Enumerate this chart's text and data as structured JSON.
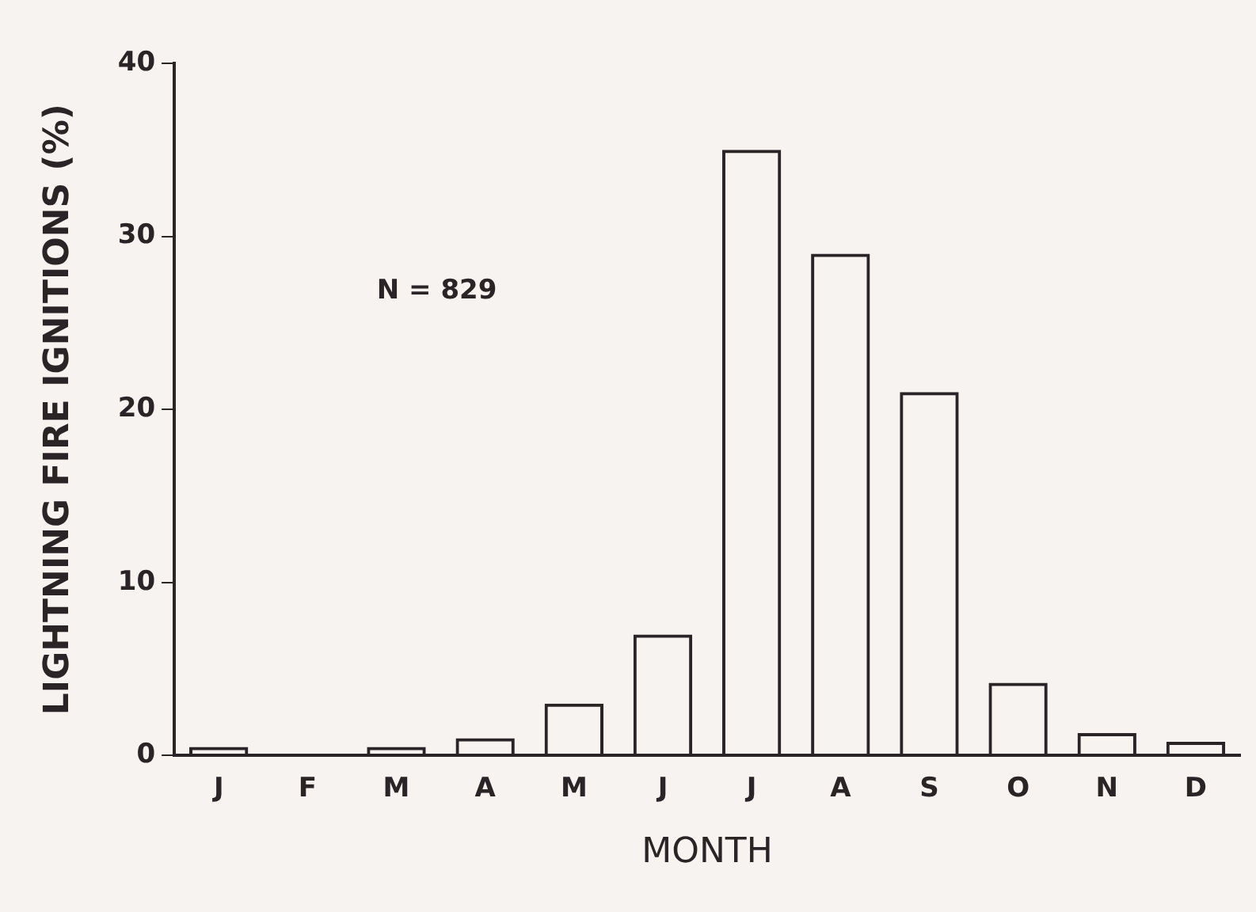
{
  "chart_data": {
    "type": "bar",
    "xlabel": "MONTH",
    "ylabel": "LIGHTNING FIRE IGNITIONS (%)",
    "categories": [
      "J",
      "F",
      "M",
      "A",
      "M",
      "J",
      "J",
      "A",
      "S",
      "O",
      "N",
      "D"
    ],
    "values": [
      0.5,
      0,
      0.5,
      1,
      3,
      7,
      35,
      29,
      21,
      4.2,
      1.3,
      0.8
    ],
    "color": "#2a2426",
    "ylim": [
      0,
      40
    ],
    "yticks": [
      0,
      10,
      20,
      30,
      40
    ],
    "grid": false,
    "legend": false,
    "annotations": [
      "N = 829"
    ]
  }
}
